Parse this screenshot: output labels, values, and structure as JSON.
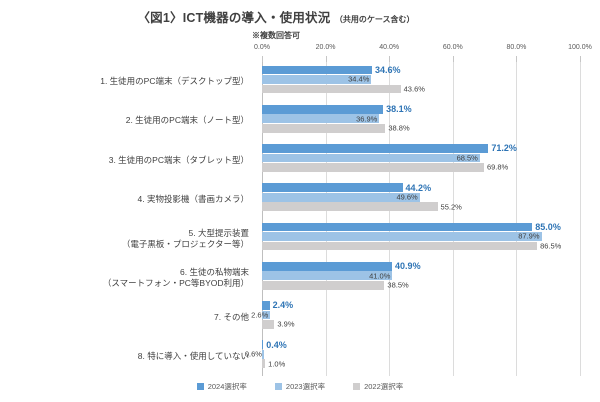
{
  "title": {
    "main": "〈図1〉ICT機器の導入・使用状況",
    "paren": "（共用のケース含む）",
    "note": "※複数回答可"
  },
  "axis": {
    "tick_labels": [
      "0.0%",
      "20.0%",
      "40.0%",
      "60.0%",
      "80.0%",
      "100.0%"
    ],
    "min": 0,
    "max": 100
  },
  "legend": [
    {
      "label": "2024選択率",
      "color": "#5b9bd5"
    },
    {
      "label": "2023選択率",
      "color": "#9dc3e6"
    },
    {
      "label": "2022選択率",
      "color": "#d0cece"
    }
  ],
  "colors": {
    "series_2024": "#5b9bd5",
    "series_2023": "#9dc3e6",
    "series_2022": "#d0cece",
    "label_2024": "#2e74b5",
    "gridline": "#dcdcdc",
    "text": "#404040"
  },
  "chart_data": {
    "type": "bar",
    "orientation": "horizontal",
    "title": "〈図1〉ICT機器の導入・使用状況（共用のケース含む）",
    "subtitle": "※複数回答可",
    "xlim": [
      0,
      100
    ],
    "grid": true,
    "legend_position": "bottom",
    "value_suffix": "%",
    "categories": [
      [
        "1. 生徒用のPC端末（デスクトップ型）"
      ],
      [
        "2. 生徒用のPC端末（ノート型）"
      ],
      [
        "3. 生徒用のPC端末（タブレット型）"
      ],
      [
        "4. 実物投影機（書画カメラ）"
      ],
      [
        "5. 大型提示装置",
        "（電子黒板・プロジェクター等）"
      ],
      [
        "6. 生徒の私物端末",
        "（スマートフォン・PC等BYOD利用）"
      ],
      [
        "7. その他"
      ],
      [
        "8. 特に導入・使用していない"
      ]
    ],
    "series": [
      {
        "name": "2024選択率",
        "color": "#5b9bd5",
        "values": [
          34.6,
          38.1,
          71.2,
          44.2,
          85.0,
          40.9,
          2.4,
          0.4
        ]
      },
      {
        "name": "2023選択率",
        "color": "#9dc3e6",
        "values": [
          34.4,
          36.9,
          68.5,
          49.6,
          87.9,
          41.0,
          2.6,
          0.6
        ]
      },
      {
        "name": "2022選択率",
        "color": "#d0cece",
        "values": [
          43.6,
          38.8,
          69.8,
          55.2,
          86.5,
          38.5,
          3.9,
          1.0
        ]
      }
    ]
  }
}
